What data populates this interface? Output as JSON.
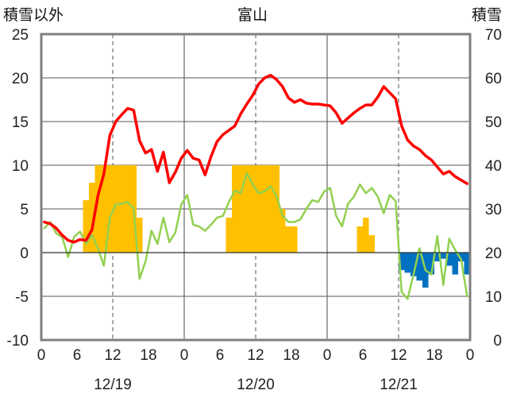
{
  "chart_data": {
    "type": "bar+line",
    "title": "富山",
    "left_axis_label": "積雪以外",
    "right_axis_label": "積雪",
    "left_ylim": [
      -10,
      25
    ],
    "left_yticks": [
      -10,
      -5,
      0,
      5,
      10,
      15,
      20,
      25
    ],
    "right_ylim": [
      0,
      70
    ],
    "right_yticks": [
      0,
      10,
      20,
      30,
      40,
      50,
      60,
      70
    ],
    "x_range_hours": [
      0,
      72
    ],
    "x_tick_labels": [
      "0",
      "6",
      "12",
      "18",
      "0",
      "6",
      "12",
      "18",
      "0",
      "6",
      "12",
      "18",
      "0"
    ],
    "date_labels": [
      {
        "hour": 12,
        "label": "12/19"
      },
      {
        "hour": 36,
        "label": "12/20"
      },
      {
        "hour": 60,
        "label": "12/21"
      }
    ],
    "grid": true,
    "colors": {
      "temperature": "#ff0000",
      "dewpoint": "#92d050",
      "precip": "#ffc000",
      "negative": "#0070c0",
      "baseline": "#7030a0",
      "frame": "#7f7f7f"
    },
    "series": [
      {
        "key": "temperature",
        "axis": "left",
        "x": [
          0,
          1,
          2,
          3,
          4,
          5,
          6,
          7,
          8,
          9,
          10,
          11,
          12,
          13,
          14,
          15,
          16,
          17,
          18,
          19,
          20,
          21,
          22,
          23,
          24,
          25,
          26,
          27,
          28,
          29,
          30,
          31,
          32,
          33,
          34,
          35,
          36,
          37,
          38,
          39,
          40,
          41,
          42,
          43,
          44,
          45,
          46,
          47,
          48,
          49,
          50,
          51,
          52,
          53,
          54,
          55,
          56,
          57,
          58,
          59,
          60,
          61,
          62,
          63,
          64,
          65,
          66,
          67,
          68,
          69,
          70,
          71
        ],
        "values": [
          3.5,
          3.3,
          2.8,
          2.0,
          1.4,
          1.2,
          1.5,
          1.4,
          2.6,
          6.5,
          9.0,
          13.4,
          15.0,
          15.8,
          16.5,
          16.3,
          12.8,
          11.4,
          11.8,
          9.3,
          11.5,
          8.0,
          9.2,
          10.8,
          11.7,
          10.8,
          10.6,
          8.9,
          11.0,
          12.7,
          13.5,
          14.0,
          14.5,
          15.9,
          17.0,
          18.0,
          19.3,
          20.0,
          20.3,
          19.8,
          19.0,
          17.7,
          17.2,
          17.5,
          17.1,
          17.0,
          17.0,
          16.9,
          16.8,
          16.0,
          14.8,
          15.4,
          16.0,
          16.5,
          16.9,
          16.9,
          17.8,
          19.0,
          18.3,
          17.6,
          14.5,
          12.9,
          12.2,
          11.8,
          11.1,
          10.6,
          9.8,
          9.0,
          9.3,
          8.7,
          8.3,
          7.9
        ]
      },
      {
        "key": "dewpoint",
        "axis": "left",
        "x": [
          0,
          1,
          2,
          3,
          4,
          5,
          6,
          7,
          8,
          9,
          10,
          11,
          12,
          13,
          14,
          15,
          16,
          17,
          18,
          19,
          20,
          21,
          22,
          23,
          24,
          25,
          26,
          27,
          28,
          29,
          30,
          31,
          32,
          33,
          34,
          35,
          36,
          37,
          38,
          39,
          40,
          41,
          42,
          43,
          44,
          45,
          46,
          47,
          48,
          49,
          50,
          51,
          52,
          53,
          54,
          55,
          56,
          57,
          58,
          59,
          60,
          61,
          62,
          63,
          64,
          65,
          66,
          67,
          68,
          69,
          70,
          71
        ],
        "values": [
          2.8,
          3.5,
          2.2,
          1.8,
          -0.5,
          1.8,
          2.4,
          1.0,
          2.0,
          0.5,
          -1.5,
          4.0,
          5.5,
          5.6,
          5.8,
          5.1,
          -3.0,
          -1.0,
          2.5,
          1.0,
          4.0,
          1.2,
          2.3,
          5.5,
          6.6,
          3.2,
          3.0,
          2.5,
          3.2,
          4.0,
          4.2,
          5.8,
          7.1,
          6.8,
          9.1,
          7.8,
          6.8,
          7.0,
          7.6,
          6.5,
          4.2,
          3.5,
          3.5,
          3.8,
          5.0,
          6.0,
          5.8,
          7.0,
          7.4,
          4.2,
          3.0,
          5.6,
          6.4,
          7.8,
          6.8,
          7.4,
          6.4,
          4.5,
          6.6,
          5.9,
          -4.5,
          -5.3,
          -2.5,
          0.5,
          -2.0,
          -2.5,
          1.9,
          -3.7,
          1.6,
          0.3,
          -0.8,
          -5.0
        ]
      },
      {
        "key": "precip",
        "axis": "left",
        "bar_width_hours": 1,
        "x": [
          7,
          8,
          9,
          10,
          11,
          12,
          13,
          14,
          15,
          16,
          31,
          32,
          33,
          34,
          35,
          36,
          37,
          38,
          39,
          40,
          41,
          42,
          53,
          54,
          55
        ],
        "values": [
          6,
          8,
          10,
          10,
          10,
          10,
          10,
          10,
          10,
          4,
          4,
          10,
          10,
          10,
          10,
          10,
          10,
          10,
          10,
          5,
          3,
          3,
          3,
          4,
          2
        ]
      },
      {
        "key": "negative",
        "axis": "left",
        "bar_width_hours": 1,
        "x": [
          60,
          61,
          62,
          63,
          64,
          65,
          66,
          67,
          68,
          69,
          70,
          71
        ],
        "values": [
          -2.0,
          -2.3,
          -2.7,
          -3.2,
          -4.0,
          -2.5,
          -1.0,
          -0.7,
          -1.5,
          -2.5,
          -1.0,
          -2.5
        ]
      }
    ]
  }
}
